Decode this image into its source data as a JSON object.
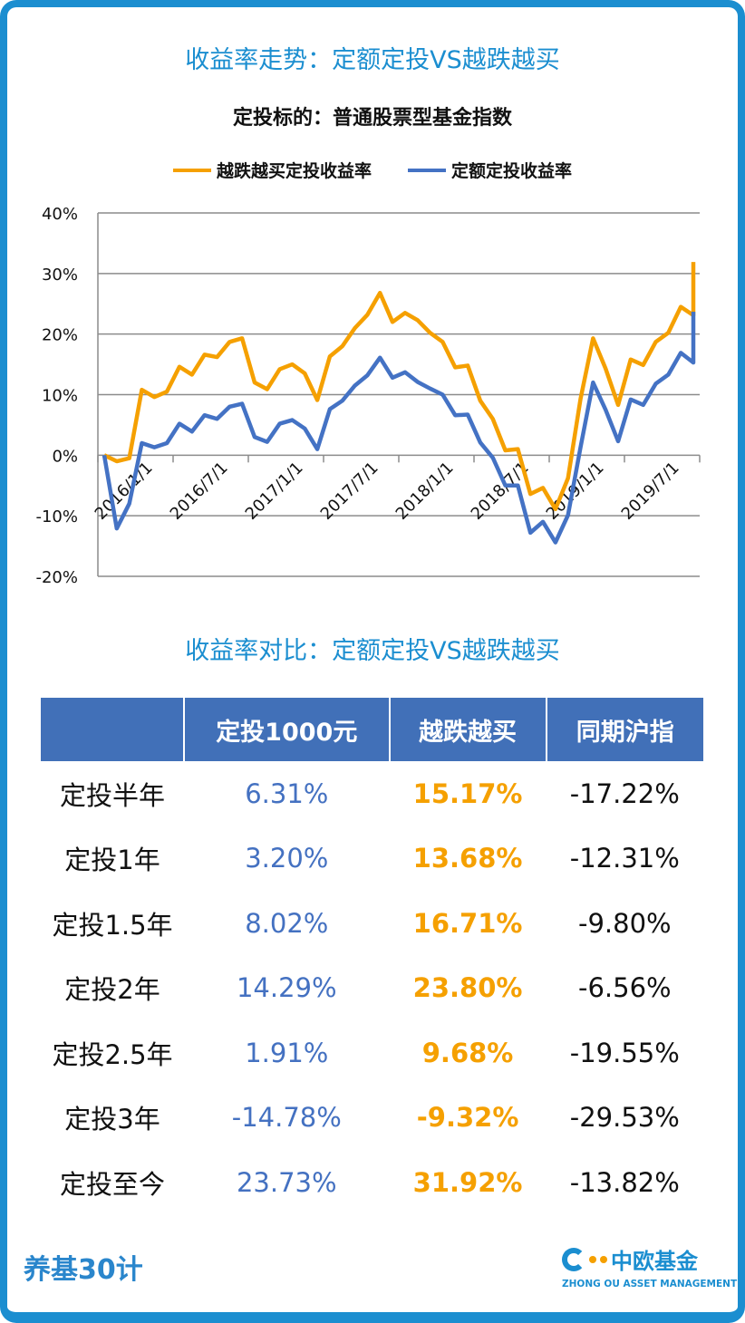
{
  "header": {
    "title": "收益率走势：定额定投VS越跌越买",
    "subtitle": "定投标的：普通股票型基金指数"
  },
  "chart_data": {
    "type": "line",
    "title": "定投标的：普通股票型基金指数",
    "ylim": [
      -0.2,
      0.4
    ],
    "y_ticks": [
      "40%",
      "30%",
      "20%",
      "10%",
      "0%",
      "-10%",
      "-20%"
    ],
    "x_ticks": [
      "2016/1/1",
      "2016/7/1",
      "2017/1/1",
      "2017/7/1",
      "2018/1/1",
      "2018/7/1",
      "2019/1/1",
      "2019/7/1"
    ],
    "grid": true,
    "legend_position": "top",
    "x": [
      "2016/1",
      "2016/2",
      "2016/3",
      "2016/4",
      "2016/5",
      "2016/6",
      "2016/7",
      "2016/8",
      "2016/9",
      "2016/10",
      "2016/11",
      "2016/12",
      "2017/1",
      "2017/2",
      "2017/3",
      "2017/4",
      "2017/5",
      "2017/6",
      "2017/7",
      "2017/8",
      "2017/9",
      "2017/10",
      "2017/11",
      "2017/12",
      "2018/1",
      "2018/2",
      "2018/3",
      "2018/4",
      "2018/5",
      "2018/6",
      "2018/7",
      "2018/8",
      "2018/9",
      "2018/10",
      "2018/11",
      "2018/12",
      "2019/1",
      "2019/2",
      "2019/3",
      "2019/4",
      "2019/5",
      "2019/6",
      "2019/7",
      "2019/8",
      "2019/9",
      "2019/10",
      "2019/11",
      "2019/12",
      "2019/12"
    ],
    "series": [
      {
        "name": "越跌越买定投收益率",
        "color": "#f5a000",
        "values": [
          0,
          -1,
          -0.5,
          10.8,
          9.6,
          10.5,
          14.6,
          13.3,
          16.6,
          16.2,
          18.7,
          19.3,
          12,
          10.9,
          14.2,
          15,
          13.5,
          9.1,
          16.3,
          18,
          21,
          23.2,
          26.8,
          22,
          23.5,
          22.3,
          20.2,
          18.7,
          14.5,
          14.8,
          9,
          6,
          0.8,
          1,
          -6.4,
          -5.4,
          -8.9,
          -3.8,
          9.3,
          19.3,
          14.3,
          8.3,
          15.8,
          14.9,
          18.7,
          20.2,
          24.5,
          23.1,
          31.9
        ]
      },
      {
        "name": "定额定投收益率",
        "color": "#4472c4",
        "values": [
          0,
          -12.1,
          -8,
          2,
          1.3,
          2,
          5.2,
          3.9,
          6.6,
          6,
          8,
          8.5,
          3,
          2.2,
          5.2,
          5.8,
          4.4,
          1,
          7.6,
          9,
          11.5,
          13.2,
          16.1,
          12.8,
          13.7,
          12.1,
          11,
          10,
          6.6,
          6.7,
          2.1,
          -0.4,
          -5,
          -5,
          -12.8,
          -11,
          -14.4,
          -9.9,
          1.3,
          12,
          7.5,
          2.3,
          9.2,
          8.3,
          11.8,
          13.3,
          16.9,
          15.3,
          23.7
        ]
      }
    ]
  },
  "comparison": {
    "title": "收益率对比：定额定投VS越跌越买",
    "columns": [
      "",
      "定投1000元",
      "越跌越买",
      "同期沪指"
    ],
    "rows": [
      [
        "定投半年",
        "6.31%",
        "15.17%",
        "-17.22%"
      ],
      [
        "定投1年",
        "3.20%",
        "13.68%",
        "-12.31%"
      ],
      [
        "定投1.5年",
        "8.02%",
        "16.71%",
        "-9.80%"
      ],
      [
        "定投2年",
        "14.29%",
        "23.80%",
        "-6.56%"
      ],
      [
        "定投2.5年",
        "1.91%",
        "9.68%",
        "-19.55%"
      ],
      [
        "定投3年",
        "-14.78%",
        "-9.32%",
        "-29.53%"
      ],
      [
        "定投至今",
        "23.73%",
        "31.92%",
        "-13.82%"
      ]
    ]
  },
  "footer": {
    "left_logo": "养基30计",
    "right_logo_cn": "中欧基金",
    "right_logo_en": "ZHONG OU ASSET MANAGEMENT"
  }
}
